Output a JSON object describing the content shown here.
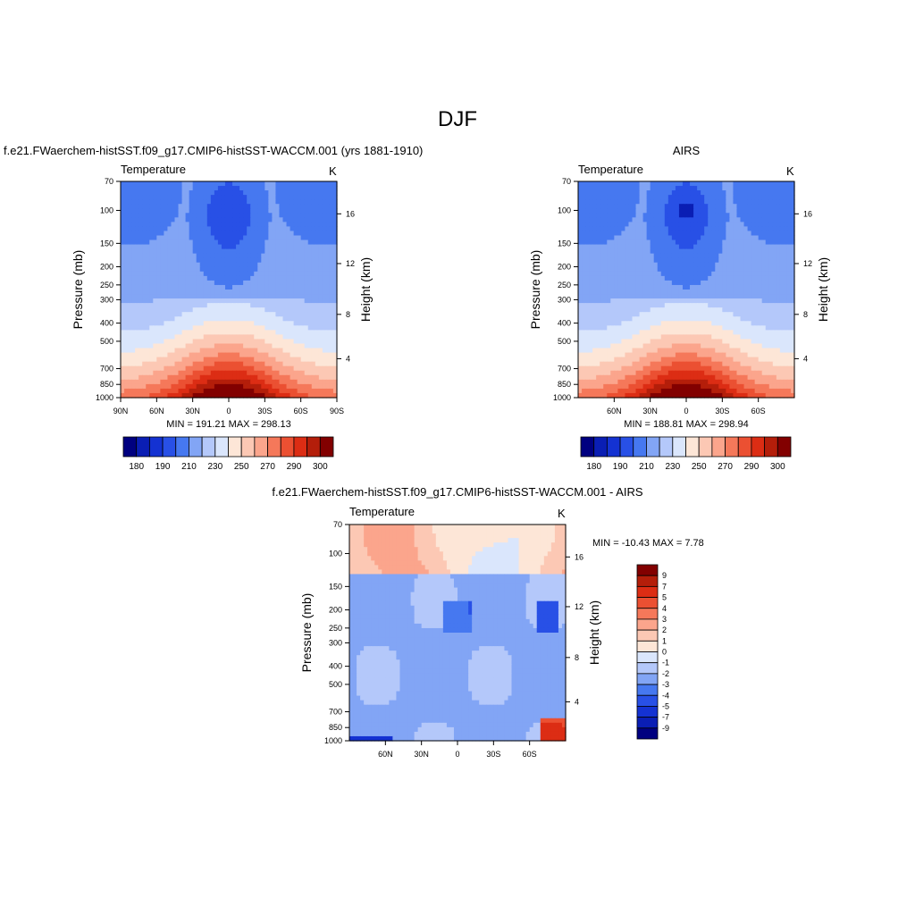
{
  "figure": {
    "title": "DJF"
  },
  "scale_colors": {
    "absolute": [
      "#000080",
      "#0a1eb4",
      "#1432d2",
      "#2850e6",
      "#4678f0",
      "#82a5f5",
      "#b4c8fa",
      "#dae6fc",
      "#fde6d7",
      "#fcc8b4",
      "#fba58c",
      "#f5785a",
      "#eb5032",
      "#dc2d14",
      "#b41e0a",
      "#820000"
    ],
    "difference": [
      "#000080",
      "#0a1eb4",
      "#1432d2",
      "#2850e6",
      "#4678f0",
      "#82a5f5",
      "#b4c8fa",
      "#dae6fc",
      "#fde6d7",
      "#fcc8b4",
      "#fba58c",
      "#f5785a",
      "#eb5032",
      "#dc2d14",
      "#b41e0a",
      "#820000"
    ]
  },
  "chart_data": [
    {
      "type": "heatmap",
      "title": "f.e21.FWaerchem-histSST.f09_g17.CMIP6-histSST-WACCM.001 (yrs 1881-1910)",
      "left_string": "Temperature",
      "right_string": "K",
      "ylabel": "Pressure (mb)",
      "ylabel_right": "Height (km)",
      "x_ticks": [
        "90N",
        "60N",
        "30N",
        "0",
        "30S",
        "60S",
        "90S"
      ],
      "y_ticks": [
        "70",
        "100",
        "150",
        "200",
        "250",
        "300",
        "400",
        "500",
        "700",
        "850",
        "1000"
      ],
      "y_right_ticks": [
        "4",
        "8",
        "12",
        "16"
      ],
      "stats": "MIN = 191.21  MAX = 298.13",
      "colorbar_labels": [
        "180",
        "190",
        "210",
        "230",
        "250",
        "270",
        "290",
        "300"
      ]
    },
    {
      "type": "heatmap",
      "title": "AIRS",
      "left_string": "Temperature",
      "right_string": "K",
      "ylabel": "Pressure (mb)",
      "ylabel_right": "Height (km)",
      "x_ticks": [
        "60N",
        "30N",
        "0",
        "30S",
        "60S"
      ],
      "y_ticks": [
        "70",
        "100",
        "150",
        "200",
        "250",
        "300",
        "400",
        "500",
        "700",
        "850",
        "1000"
      ],
      "y_right_ticks": [
        "4",
        "8",
        "12",
        "16"
      ],
      "stats": "MIN = 188.81  MAX = 298.94",
      "colorbar_labels": [
        "180",
        "190",
        "210",
        "230",
        "250",
        "270",
        "290",
        "300"
      ]
    },
    {
      "type": "heatmap",
      "title": "f.e21.FWaerchem-histSST.f09_g17.CMIP6-histSST-WACCM.001 - AIRS",
      "left_string": "Temperature",
      "right_string": "K",
      "ylabel": "Pressure (mb)",
      "ylabel_right": "Height (km)",
      "x_ticks": [
        "60N",
        "30N",
        "0",
        "30S",
        "60S"
      ],
      "y_ticks": [
        "70",
        "100",
        "150",
        "200",
        "250",
        "300",
        "400",
        "500",
        "700",
        "850",
        "1000"
      ],
      "y_right_ticks": [
        "4",
        "8",
        "12",
        "16"
      ],
      "stats": "MIN = -10.43  MAX =   7.78",
      "colorbar_labels": [
        "9",
        "7",
        "5",
        "4",
        "3",
        "2",
        "1",
        "0",
        "-1",
        "-2",
        "-3",
        "-4",
        "-5",
        "-7",
        "-9"
      ]
    }
  ]
}
